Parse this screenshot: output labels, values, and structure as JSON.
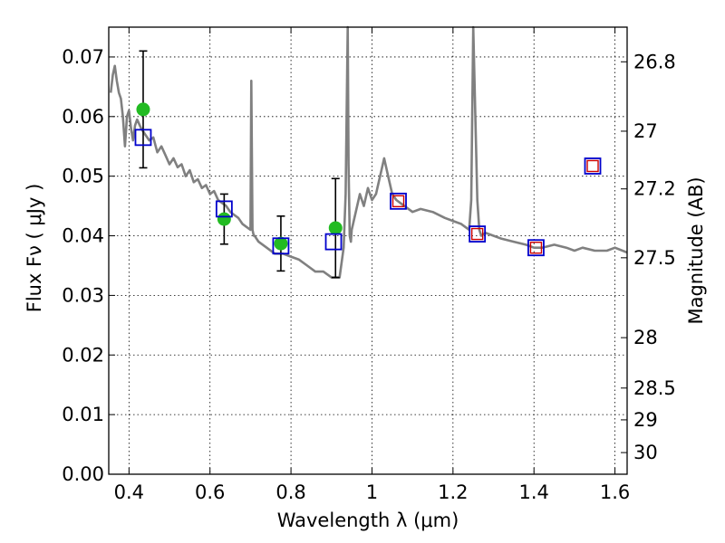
{
  "chart_data": {
    "type": "line",
    "xlabel": "Wavelength  λ (μm)",
    "ylabel": "Flux  Fν  ( μJy )",
    "y2label": "Magnitude (AB)",
    "xlim": [
      0.35,
      1.63
    ],
    "ylim": [
      0.0,
      0.075
    ],
    "grid": true,
    "x_ticks": [
      {
        "value": 0.4,
        "label": "0.4"
      },
      {
        "value": 0.6,
        "label": "0.6"
      },
      {
        "value": 0.8,
        "label": "0.8"
      },
      {
        "value": 1.0,
        "label": "1"
      },
      {
        "value": 1.2,
        "label": "1.2"
      },
      {
        "value": 1.4,
        "label": "1.4"
      },
      {
        "value": 1.6,
        "label": "1.6"
      }
    ],
    "y_ticks": [
      {
        "value": 0.0,
        "label": "0.00"
      },
      {
        "value": 0.01,
        "label": "0.01"
      },
      {
        "value": 0.02,
        "label": "0.02"
      },
      {
        "value": 0.03,
        "label": "0.03"
      },
      {
        "value": 0.04,
        "label": "0.04"
      },
      {
        "value": 0.05,
        "label": "0.05"
      },
      {
        "value": 0.06,
        "label": "0.06"
      },
      {
        "value": 0.07,
        "label": "0.07"
      }
    ],
    "y2_ticks": [
      {
        "mag": 26.8,
        "label": "26.8"
      },
      {
        "mag": 27.0,
        "label": "27"
      },
      {
        "mag": 27.2,
        "label": "27.2"
      },
      {
        "mag": 27.5,
        "label": "27.5"
      },
      {
        "mag": 28.0,
        "label": "28"
      },
      {
        "mag": 28.5,
        "label": "28.5"
      },
      {
        "mag": 29.0,
        "label": "29"
      },
      {
        "mag": 30.0,
        "label": "30"
      }
    ],
    "colors": {
      "sed": "#808080",
      "observed": "#22bb22",
      "model_box": "#0000cc",
      "model_box_inner": "#cc0000",
      "errorbar": "#000000",
      "grid": "#000000"
    },
    "series": [
      {
        "kind": "sed_line",
        "x": [
          0.355,
          0.36,
          0.365,
          0.37,
          0.375,
          0.38,
          0.385,
          0.39,
          0.395,
          0.4,
          0.405,
          0.41,
          0.415,
          0.42,
          0.43,
          0.44,
          0.45,
          0.46,
          0.47,
          0.48,
          0.49,
          0.5,
          0.51,
          0.52,
          0.53,
          0.54,
          0.55,
          0.56,
          0.57,
          0.58,
          0.59,
          0.6,
          0.61,
          0.62,
          0.63,
          0.64,
          0.65,
          0.66,
          0.67,
          0.68,
          0.69,
          0.7,
          0.702,
          0.705,
          0.708,
          0.71,
          0.72,
          0.74,
          0.76,
          0.78,
          0.8,
          0.82,
          0.84,
          0.86,
          0.88,
          0.9,
          0.92,
          0.93,
          0.935,
          0.94,
          0.942,
          0.945,
          0.948,
          0.95,
          0.96,
          0.97,
          0.98,
          0.99,
          1.0,
          1.01,
          1.02,
          1.03,
          1.04,
          1.05,
          1.06,
          1.08,
          1.1,
          1.12,
          1.15,
          1.18,
          1.2,
          1.22,
          1.24,
          1.245,
          1.25,
          1.26,
          1.265,
          1.27,
          1.28,
          1.3,
          1.32,
          1.35,
          1.38,
          1.4,
          1.42,
          1.45,
          1.48,
          1.5,
          1.52,
          1.55,
          1.58,
          1.6,
          1.63
        ],
        "y": [
          0.064,
          0.067,
          0.0685,
          0.066,
          0.064,
          0.063,
          0.06,
          0.055,
          0.06,
          0.061,
          0.058,
          0.056,
          0.0585,
          0.0595,
          0.058,
          0.057,
          0.056,
          0.0565,
          0.054,
          0.055,
          0.0535,
          0.052,
          0.053,
          0.0515,
          0.052,
          0.05,
          0.051,
          0.049,
          0.0495,
          0.048,
          0.0485,
          0.047,
          0.0475,
          0.046,
          0.0455,
          0.045,
          0.044,
          0.0435,
          0.043,
          0.042,
          0.0415,
          0.041,
          0.066,
          0.041,
          0.04,
          0.04,
          0.039,
          0.038,
          0.037,
          0.037,
          0.0365,
          0.036,
          0.035,
          0.034,
          0.034,
          0.033,
          0.033,
          0.038,
          0.047,
          0.076,
          0.052,
          0.04,
          0.039,
          0.041,
          0.044,
          0.047,
          0.045,
          0.048,
          0.046,
          0.047,
          0.05,
          0.053,
          0.05,
          0.047,
          0.046,
          0.045,
          0.044,
          0.0445,
          0.044,
          0.043,
          0.0425,
          0.042,
          0.041,
          0.046,
          0.076,
          0.046,
          0.041,
          0.04,
          0.0405,
          0.04,
          0.0395,
          0.039,
          0.0385,
          0.038,
          0.038,
          0.0385,
          0.038,
          0.0375,
          0.038,
          0.0375,
          0.0375,
          0.038,
          0.0372
        ]
      },
      {
        "kind": "observed_points",
        "x": [
          0.435,
          0.635,
          0.775,
          0.91
        ],
        "y": [
          0.0612,
          0.0428,
          0.0387,
          0.0413
        ],
        "yerr": [
          0.0098,
          0.0042,
          0.0046,
          0.0083
        ]
      },
      {
        "kind": "model_boxes",
        "x": [
          0.435,
          0.635,
          0.775,
          0.905,
          1.065,
          1.26,
          1.405,
          1.545
        ],
        "y": [
          0.0565,
          0.0445,
          0.0383,
          0.039,
          0.0458,
          0.0403,
          0.038,
          0.0517
        ],
        "inner": [
          false,
          false,
          false,
          false,
          true,
          true,
          true,
          true
        ]
      }
    ]
  }
}
